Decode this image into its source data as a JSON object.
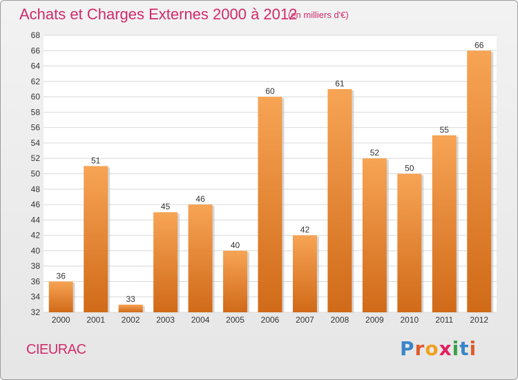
{
  "title": "Achats et Charges Externes 2000 à 2012",
  "unit_note": "(en milliers d'€)",
  "place_name": "CIEURAC",
  "logo": {
    "text": "Proxiti",
    "letters": [
      {
        "ch": "P",
        "color": "#3a86c8"
      },
      {
        "ch": "r",
        "color": "#e05a2b"
      },
      {
        "ch": "o",
        "color": "#f0a020"
      },
      {
        "ch": "x",
        "color": "#e02060"
      },
      {
        "ch": "i",
        "color": "#3aa04a"
      },
      {
        "ch": "t",
        "color": "#3a86c8"
      },
      {
        "ch": "i",
        "color": "#e05a2b"
      }
    ]
  },
  "colors": {
    "bar_light": "#f7a455",
    "bar_dark": "#d06a18",
    "title": "#d02a6a",
    "grid": "#d8d8d8"
  },
  "chart_data": {
    "type": "bar",
    "title": "Achats et Charges Externes 2000 à 2012",
    "categories": [
      "2000",
      "2001",
      "2002",
      "2003",
      "2004",
      "2005",
      "2006",
      "2007",
      "2008",
      "2009",
      "2010",
      "2011",
      "2012"
    ],
    "values": [
      36,
      51,
      33,
      45,
      46,
      40,
      60,
      42,
      61,
      52,
      50,
      55,
      66
    ],
    "ylim": [
      32,
      68
    ],
    "yticks": [
      32,
      34,
      36,
      38,
      40,
      42,
      44,
      46,
      48,
      50,
      52,
      54,
      56,
      58,
      60,
      62,
      64,
      66,
      68
    ],
    "grid": true,
    "data_labels": true
  }
}
